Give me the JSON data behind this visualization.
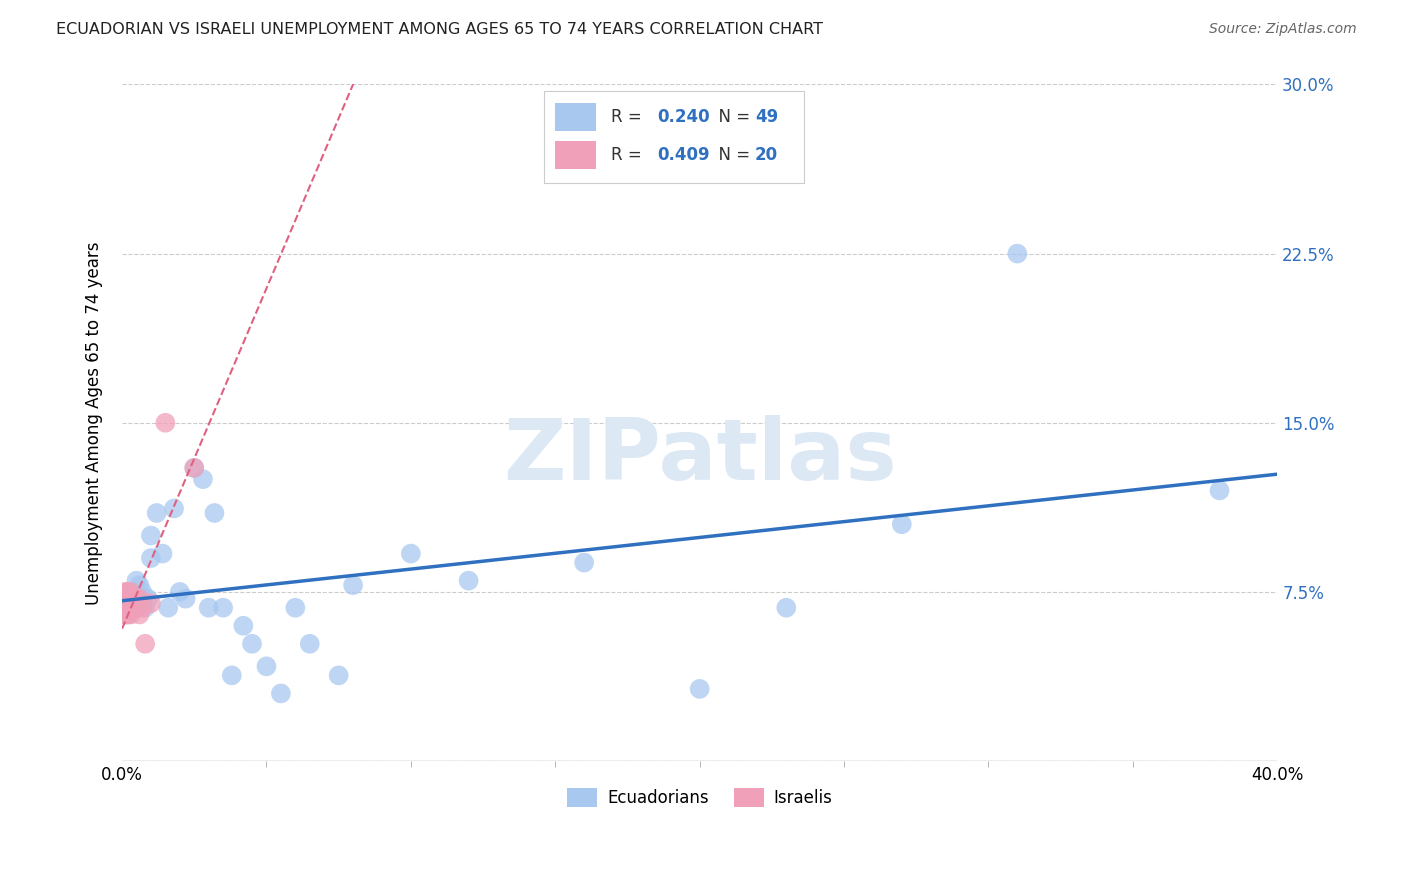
{
  "title": "ECUADORIAN VS ISRAELI UNEMPLOYMENT AMONG AGES 65 TO 74 YEARS CORRELATION CHART",
  "source": "Source: ZipAtlas.com",
  "ylabel": "Unemployment Among Ages 65 to 74 years",
  "xlim": [
    0.0,
    0.4
  ],
  "ylim": [
    0.0,
    0.3
  ],
  "xtick_positions": [
    0.0,
    0.4
  ],
  "xtick_labels": [
    "0.0%",
    "40.0%"
  ],
  "ytick_positions": [
    0.075,
    0.15,
    0.225,
    0.3
  ],
  "ytick_labels": [
    "7.5%",
    "15.0%",
    "22.5%",
    "30.0%"
  ],
  "grid_yticks": [
    0.0,
    0.075,
    0.15,
    0.225,
    0.3
  ],
  "background_color": "#ffffff",
  "grid_color": "#cccccc",
  "watermark": "ZIPatlas",
  "ecu_R": 0.24,
  "ecu_N": 49,
  "isr_R": 0.409,
  "isr_N": 20,
  "ecu_color": "#a8c8f0",
  "isr_color": "#f0a0b8",
  "ecu_line_color": "#3070c0",
  "isr_line_color": "#e06080",
  "legend_value_color": "#3070c0",
  "legend_text_color": "#333333",
  "ecu_x": [
    0.001,
    0.001,
    0.002,
    0.002,
    0.002,
    0.003,
    0.003,
    0.003,
    0.004,
    0.004,
    0.005,
    0.005,
    0.005,
    0.006,
    0.006,
    0.007,
    0.007,
    0.008,
    0.009,
    0.01,
    0.01,
    0.012,
    0.014,
    0.016,
    0.018,
    0.02,
    0.022,
    0.025,
    0.028,
    0.03,
    0.032,
    0.035,
    0.038,
    0.042,
    0.045,
    0.05,
    0.055,
    0.06,
    0.065,
    0.075,
    0.08,
    0.1,
    0.12,
    0.16,
    0.2,
    0.23,
    0.27,
    0.31,
    0.38
  ],
  "ecu_y": [
    0.065,
    0.07,
    0.065,
    0.072,
    0.075,
    0.068,
    0.072,
    0.075,
    0.07,
    0.075,
    0.068,
    0.075,
    0.08,
    0.072,
    0.078,
    0.07,
    0.075,
    0.068,
    0.072,
    0.09,
    0.1,
    0.11,
    0.092,
    0.068,
    0.112,
    0.075,
    0.072,
    0.13,
    0.125,
    0.068,
    0.11,
    0.068,
    0.038,
    0.06,
    0.052,
    0.042,
    0.03,
    0.068,
    0.052,
    0.038,
    0.078,
    0.092,
    0.08,
    0.088,
    0.032,
    0.068,
    0.105,
    0.225,
    0.12
  ],
  "isr_x": [
    0.001,
    0.001,
    0.001,
    0.002,
    0.002,
    0.002,
    0.003,
    0.003,
    0.003,
    0.004,
    0.004,
    0.005,
    0.005,
    0.006,
    0.006,
    0.007,
    0.008,
    0.01,
    0.015,
    0.025
  ],
  "isr_y": [
    0.065,
    0.068,
    0.075,
    0.065,
    0.07,
    0.075,
    0.065,
    0.07,
    0.075,
    0.068,
    0.072,
    0.068,
    0.072,
    0.065,
    0.072,
    0.068,
    0.052,
    0.07,
    0.15,
    0.13
  ]
}
